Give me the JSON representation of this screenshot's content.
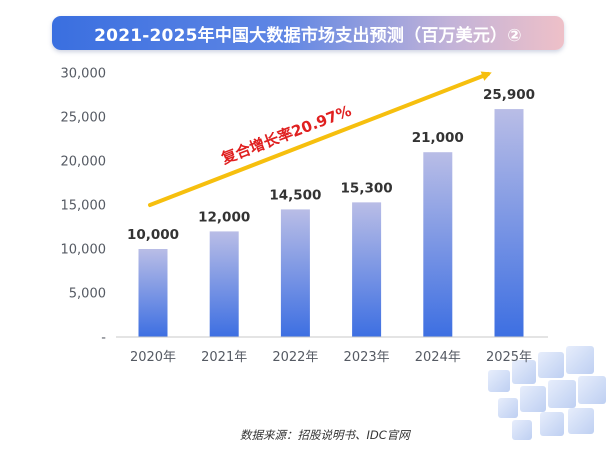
{
  "title": "2021-2025年中国大数据市场支出预测（百万美元）②",
  "source": "数据来源：招股说明书、IDC官网",
  "colors": {
    "bar_top": "#b9bde6",
    "bar_bottom": "#3d6fe2",
    "arrow": "#f6bf0e",
    "growth_text": "#e02020",
    "axis": "#c8c8c8"
  },
  "chart_data": {
    "type": "bar",
    "categories": [
      "2020年",
      "2021年",
      "2022年",
      "2023年",
      "2024年",
      "2025年"
    ],
    "values": [
      10000,
      12000,
      14500,
      15300,
      21000,
      25900
    ],
    "data_labels": [
      "10,000",
      "12,000",
      "14,500",
      "15,300",
      "21,000",
      "25,900"
    ],
    "ylim": [
      0,
      30000
    ],
    "yticks": [
      0,
      5000,
      10000,
      15000,
      20000,
      25000,
      30000
    ],
    "ytick_labels": [
      "-",
      "5,000",
      "10,000",
      "15,000",
      "20,000",
      "25,000",
      "30,000"
    ],
    "grid": false,
    "annotation": "复合增长率20.97%"
  }
}
